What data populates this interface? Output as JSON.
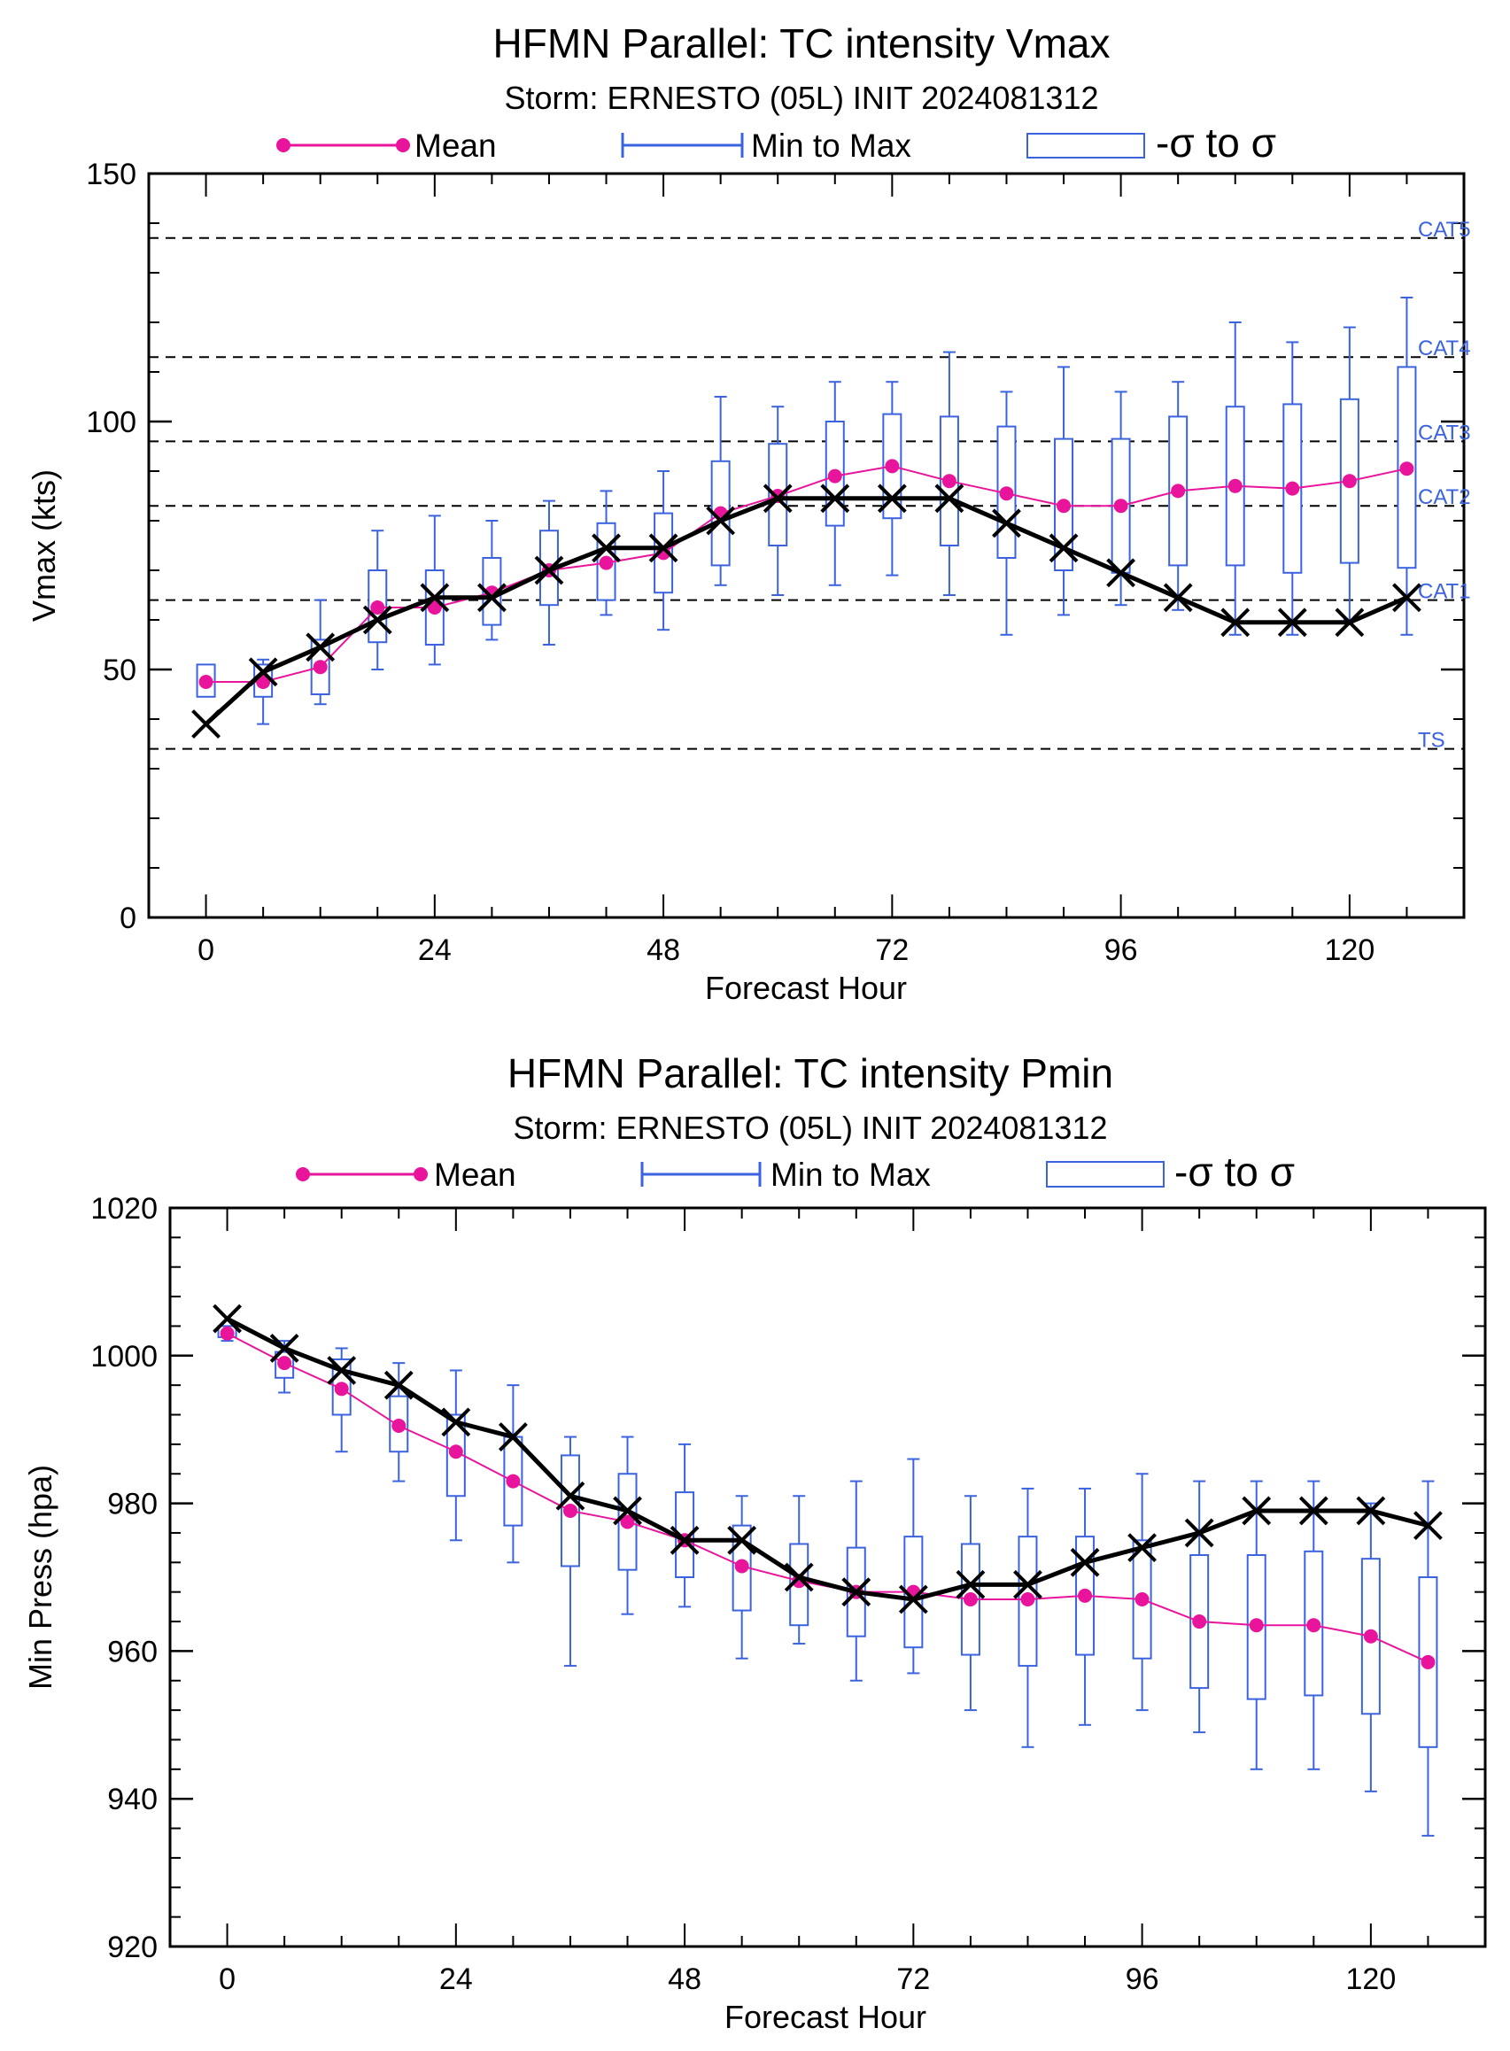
{
  "colors": {
    "mean": "#e8159c",
    "range": "#3b63e0",
    "obs": "#000000",
    "grid": "#000000"
  },
  "legend": {
    "mean": "Mean",
    "range": "Min to Max",
    "sigma": "-σ to σ"
  },
  "chart_data": [
    {
      "type": "box",
      "title": "HFMN Parallel: TC intensity Vmax",
      "subtitle": "Storm: ERNESTO (05L) INIT 2024081312",
      "xlabel": "Forecast Hour",
      "ylabel": "Vmax (kts)",
      "xlim": [
        -6,
        132
      ],
      "ylim": [
        0,
        150
      ],
      "xticks": [
        0,
        24,
        48,
        72,
        96,
        120
      ],
      "yticks": [
        0,
        50,
        100,
        150
      ],
      "y_minor_step": 10,
      "reference_lines": [
        {
          "label": "TS",
          "value": 34
        },
        {
          "label": "CAT1",
          "value": 64
        },
        {
          "label": "CAT2",
          "value": 83
        },
        {
          "label": "CAT3",
          "value": 96
        },
        {
          "label": "CAT4",
          "value": 113
        },
        {
          "label": "CAT5",
          "value": 137
        }
      ],
      "x": [
        0,
        6,
        12,
        18,
        24,
        30,
        36,
        42,
        48,
        54,
        60,
        66,
        72,
        78,
        84,
        90,
        96,
        102,
        108,
        114,
        120,
        126
      ],
      "mean": [
        47.5,
        47.5,
        50.5,
        62.5,
        62.5,
        65.5,
        70,
        71.5,
        73.5,
        81.5,
        85,
        89,
        91,
        88,
        85.5,
        83,
        83,
        86,
        87,
        86.5,
        88,
        90.5
      ],
      "min": [
        null,
        39,
        43,
        50,
        51,
        56,
        55,
        61,
        58,
        67,
        65,
        67,
        69,
        65,
        57,
        61,
        63,
        62,
        57,
        57,
        60,
        57
      ],
      "max": [
        null,
        52,
        64,
        78,
        81,
        80,
        84,
        86,
        90,
        105,
        103,
        108,
        108,
        114,
        106,
        111,
        106,
        108,
        120,
        116,
        119,
        125
      ],
      "sigma_low": [
        44.5,
        44.5,
        45,
        55.5,
        55,
        59,
        63,
        64,
        65.5,
        71,
        75,
        79,
        80.5,
        75,
        72.5,
        70,
        69.5,
        71,
        71,
        69.5,
        71.5,
        70.5
      ],
      "sigma_high": [
        51,
        51,
        56,
        70,
        70,
        72.5,
        78,
        79.5,
        81.5,
        92,
        95.5,
        100,
        101.5,
        101,
        99,
        96.5,
        96.5,
        101,
        103,
        103.5,
        104.5,
        111
      ],
      "observed": [
        39,
        49.5,
        54.5,
        60,
        64.5,
        64.5,
        70,
        74.5,
        74.5,
        80,
        84.5,
        84.5,
        84.5,
        84.5,
        79.5,
        74.5,
        69.5,
        64.5,
        59.5,
        59.5,
        59.5,
        64.5
      ]
    },
    {
      "type": "box",
      "title": "HFMN Parallel: TC intensity Pmin",
      "subtitle": "Storm: ERNESTO (05L) INIT 2024081312",
      "xlabel": "Forecast Hour",
      "ylabel": "Min Press (hpa)",
      "xlim": [
        -6,
        132
      ],
      "ylim": [
        920,
        1020
      ],
      "xticks": [
        0,
        24,
        48,
        72,
        96,
        120
      ],
      "yticks": [
        920,
        940,
        960,
        980,
        1000,
        1020
      ],
      "y_minor_step": 4,
      "reference_lines": [],
      "x": [
        0,
        6,
        12,
        18,
        24,
        30,
        36,
        42,
        48,
        54,
        60,
        66,
        72,
        78,
        84,
        90,
        96,
        102,
        108,
        114,
        120,
        126
      ],
      "mean": [
        1003,
        999,
        995.5,
        990.5,
        987,
        983,
        979,
        977.5,
        975,
        971.5,
        969.5,
        968,
        968,
        967,
        967,
        967.5,
        967,
        964,
        963.5,
        963.5,
        962,
        958.5
      ],
      "min": [
        1002,
        995,
        987,
        983,
        975,
        972,
        958,
        965,
        966,
        959,
        961,
        956,
        957,
        952,
        947,
        950,
        952,
        949,
        944,
        944,
        941,
        935
      ],
      "max": [
        1004,
        1002,
        1001,
        999,
        998,
        996,
        989,
        989,
        988,
        981,
        981,
        983,
        986,
        981,
        982,
        982,
        984,
        983,
        983,
        983,
        980,
        983
      ],
      "sigma_low": [
        1002.5,
        997,
        992,
        987,
        981,
        977,
        971.5,
        971,
        970,
        965.5,
        963.5,
        962,
        960.5,
        959.5,
        958,
        959.5,
        959,
        955,
        953.5,
        954,
        951.5,
        947
      ],
      "sigma_high": [
        1004,
        1000.5,
        999.5,
        994.5,
        992,
        989,
        986.5,
        984,
        981.5,
        977,
        974.5,
        974,
        975.5,
        974.5,
        975.5,
        975.5,
        975,
        973,
        973,
        973.5,
        972.5,
        970
      ],
      "observed": [
        1005,
        1001,
        998,
        996,
        991,
        989,
        981,
        979,
        975,
        975,
        970,
        968,
        967,
        969,
        969,
        972,
        974,
        976,
        979,
        979,
        979,
        977
      ]
    }
  ]
}
